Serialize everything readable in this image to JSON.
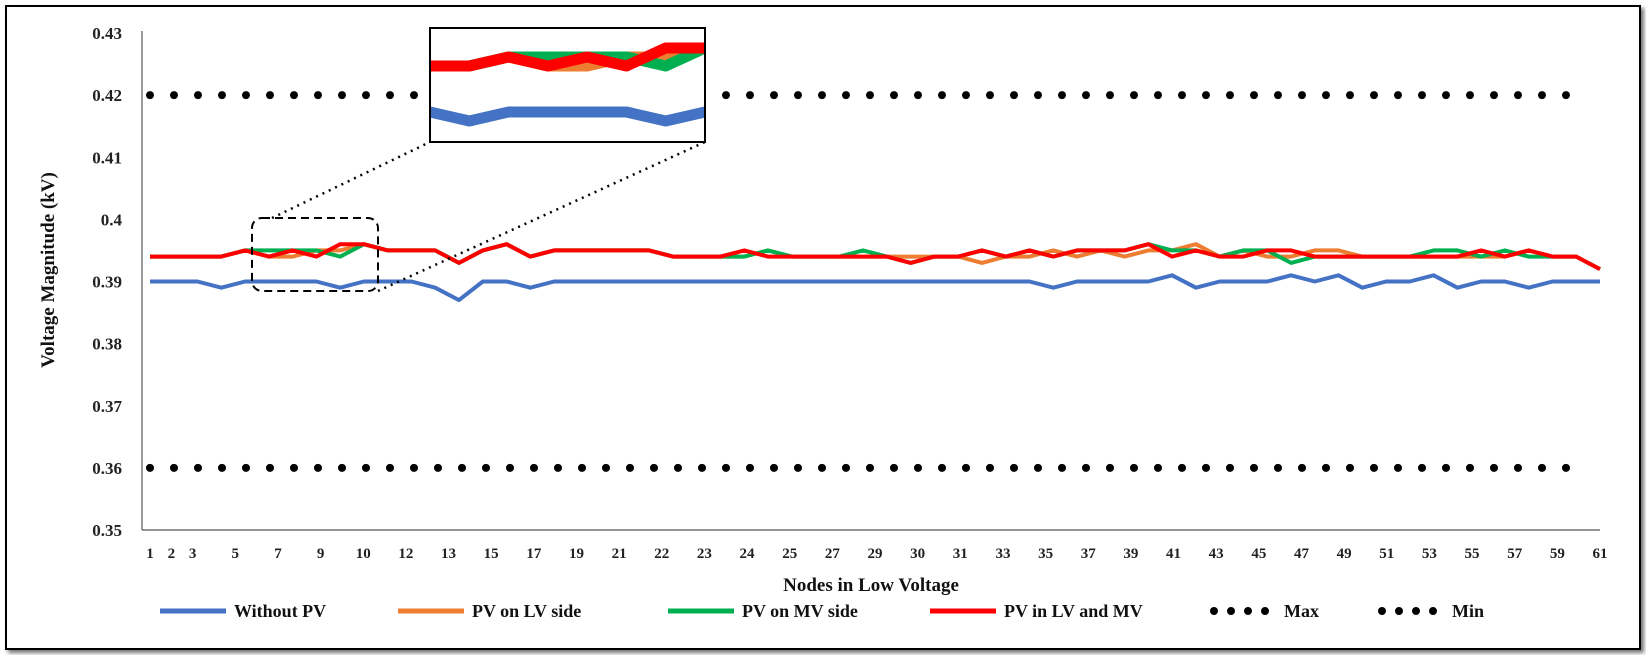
{
  "chart_data": {
    "type": "line",
    "xlabel": "Nodes in Low Voltage",
    "ylabel": "Voltage Magnitude (kV)",
    "x": [
      1,
      2,
      3,
      4,
      5,
      6,
      7,
      8,
      9,
      10,
      11,
      12,
      13,
      14,
      15,
      16,
      17,
      18,
      19,
      20,
      21,
      22,
      23,
      24,
      25,
      26,
      27,
      28,
      29,
      30,
      31,
      32,
      33,
      34,
      35,
      36,
      37,
      38,
      39,
      40,
      41,
      42,
      43,
      44,
      45,
      46,
      47,
      48,
      49,
      50,
      51,
      52,
      53,
      54,
      55,
      56,
      57,
      58,
      59,
      60,
      61,
      62
    ],
    "x_tick_labels": [
      "1",
      "3",
      "5",
      "7",
      "9",
      "10",
      "12",
      "13",
      "15",
      "17",
      "19",
      "21",
      "22",
      "23",
      "24",
      "25",
      "27",
      "29",
      "30",
      "31",
      "33",
      "35",
      "37",
      "39",
      "41",
      "43",
      "45",
      "47",
      "49",
      "51",
      "53",
      "55",
      "57",
      "59",
      "61"
    ],
    "x_tick_label_positions": [
      1,
      3,
      5,
      7,
      9,
      11,
      13,
      15,
      17,
      19,
      21,
      23,
      25,
      27,
      29,
      31,
      33,
      35,
      37,
      39,
      41,
      43,
      45,
      47,
      49,
      51,
      53,
      55,
      57,
      59,
      61,
      63,
      65,
      67,
      69
    ],
    "extra_x_tick_labels": [
      {
        "label": "2",
        "pos": 2
      }
    ],
    "ylim": [
      0.35,
      0.43
    ],
    "y_ticks": [
      "0.35",
      "0.36",
      "0.37",
      "0.38",
      "0.39",
      "0.4",
      "0.41",
      "0.42",
      "0.43"
    ],
    "grid": false,
    "legend_position": "bottom",
    "series": [
      {
        "name": "Without PV",
        "color": "#4472C4",
        "style": "solid",
        "values": [
          0.39,
          0.39,
          0.39,
          0.389,
          0.39,
          0.39,
          0.39,
          0.39,
          0.389,
          0.39,
          0.39,
          0.39,
          0.389,
          0.387,
          0.39,
          0.39,
          0.389,
          0.39,
          0.39,
          0.39,
          0.39,
          0.39,
          0.39,
          0.39,
          0.39,
          0.39,
          0.39,
          0.39,
          0.39,
          0.39,
          0.39,
          0.39,
          0.39,
          0.39,
          0.39,
          0.39,
          0.39,
          0.39,
          0.389,
          0.39,
          0.39,
          0.39,
          0.39,
          0.391,
          0.389,
          0.39,
          0.39,
          0.39,
          0.391,
          0.39,
          0.391,
          0.389,
          0.39,
          0.39,
          0.391,
          0.389,
          0.39,
          0.39,
          0.389,
          0.39,
          0.39,
          0.39
        ]
      },
      {
        "name": "PV on LV side",
        "color": "#ED7D31",
        "style": "solid",
        "values": [
          0.394,
          0.394,
          0.394,
          0.394,
          0.395,
          0.394,
          0.394,
          0.395,
          0.395,
          0.396,
          0.395,
          0.395,
          0.395,
          0.393,
          0.395,
          0.396,
          0.394,
          0.395,
          0.395,
          0.395,
          0.395,
          0.395,
          0.394,
          0.394,
          0.394,
          0.394,
          0.395,
          0.394,
          0.394,
          0.394,
          0.394,
          0.394,
          0.394,
          0.394,
          0.394,
          0.393,
          0.394,
          0.394,
          0.395,
          0.394,
          0.395,
          0.394,
          0.395,
          0.395,
          0.396,
          0.394,
          0.395,
          0.394,
          0.394,
          0.395,
          0.395,
          0.394,
          0.394,
          0.394,
          0.394,
          0.394,
          0.394,
          0.394,
          0.395,
          0.394,
          0.394,
          0.392
        ]
      },
      {
        "name": "PV on MV side",
        "color": "#00B050",
        "style": "solid",
        "values": [
          0.394,
          0.394,
          0.394,
          0.394,
          0.395,
          0.395,
          0.395,
          0.395,
          0.394,
          0.396,
          0.395,
          0.395,
          0.395,
          0.393,
          0.395,
          0.396,
          0.394,
          0.395,
          0.395,
          0.395,
          0.395,
          0.395,
          0.394,
          0.394,
          0.394,
          0.394,
          0.395,
          0.394,
          0.394,
          0.394,
          0.395,
          0.394,
          0.393,
          0.394,
          0.394,
          0.395,
          0.394,
          0.395,
          0.394,
          0.395,
          0.395,
          0.395,
          0.396,
          0.395,
          0.395,
          0.394,
          0.395,
          0.395,
          0.393,
          0.394,
          0.394,
          0.394,
          0.394,
          0.394,
          0.395,
          0.395,
          0.394,
          0.395,
          0.394,
          0.394,
          0.394,
          0.392
        ]
      },
      {
        "name": "PV in LV and MV",
        "color": "#FF0000",
        "style": "solid",
        "values": [
          0.394,
          0.394,
          0.394,
          0.394,
          0.395,
          0.394,
          0.395,
          0.394,
          0.396,
          0.396,
          0.395,
          0.395,
          0.395,
          0.393,
          0.395,
          0.396,
          0.394,
          0.395,
          0.395,
          0.395,
          0.395,
          0.395,
          0.394,
          0.394,
          0.394,
          0.395,
          0.394,
          0.394,
          0.394,
          0.394,
          0.394,
          0.394,
          0.393,
          0.394,
          0.394,
          0.395,
          0.394,
          0.395,
          0.394,
          0.395,
          0.395,
          0.395,
          0.396,
          0.394,
          0.395,
          0.394,
          0.394,
          0.395,
          0.395,
          0.394,
          0.394,
          0.394,
          0.394,
          0.394,
          0.394,
          0.394,
          0.395,
          0.394,
          0.395,
          0.394,
          0.394,
          0.392
        ]
      },
      {
        "name": "Max",
        "color": "#000000",
        "style": "dotted",
        "constant": 0.42
      },
      {
        "name": "Min",
        "color": "#000000",
        "style": "dotted",
        "constant": 0.36
      }
    ]
  }
}
